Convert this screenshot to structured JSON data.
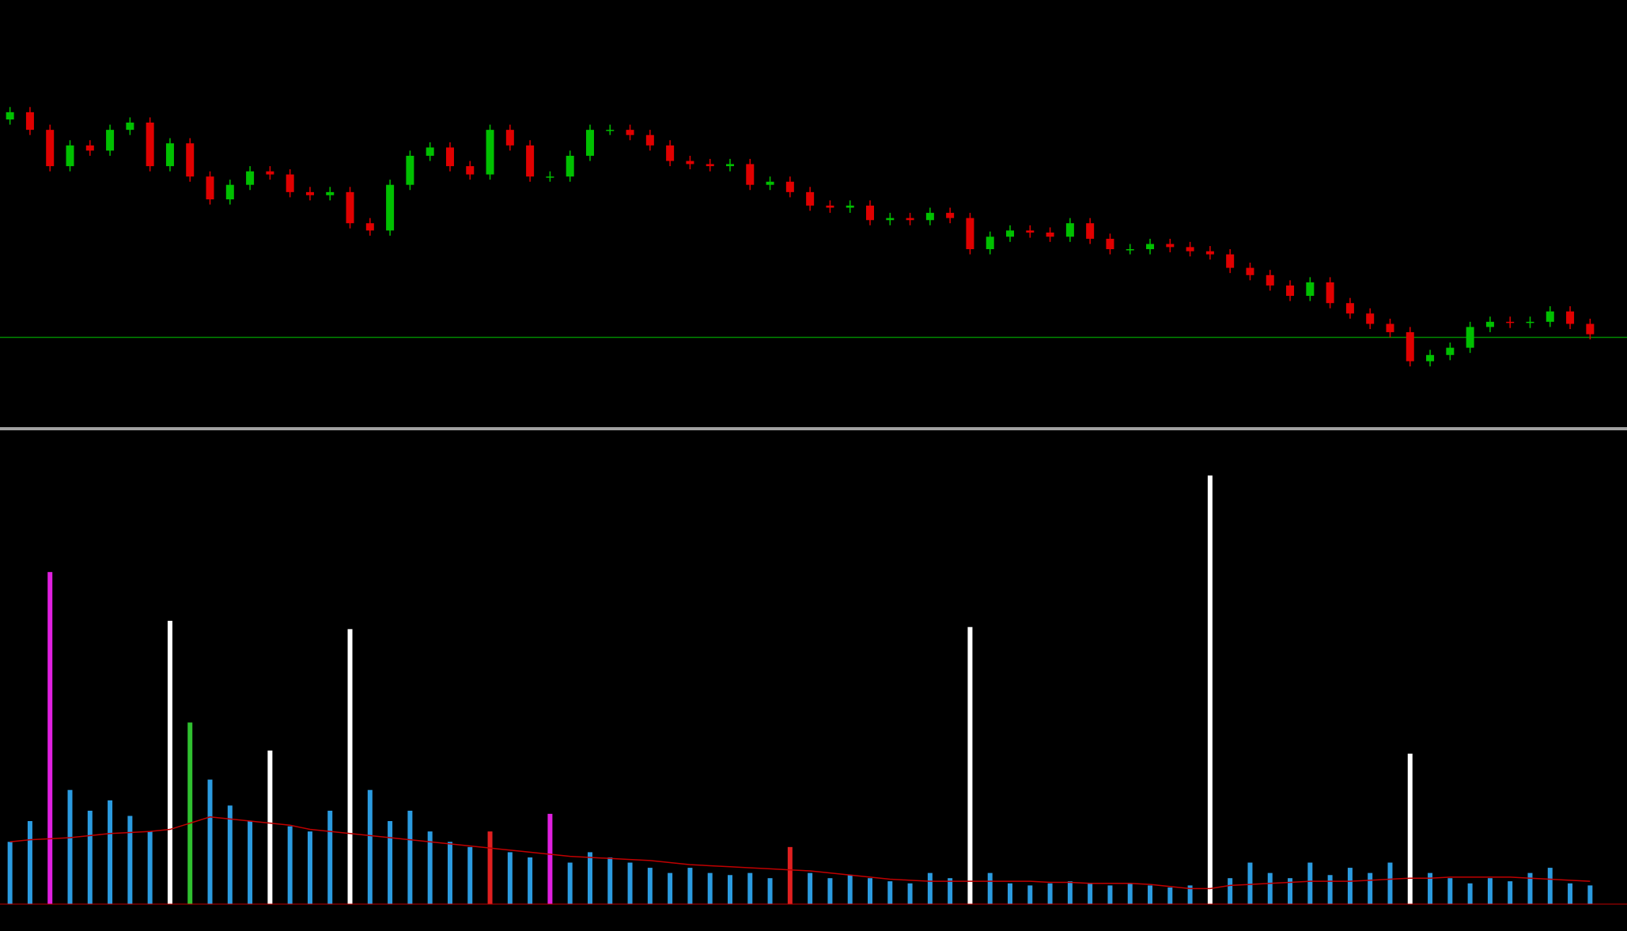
{
  "chart_data": [
    {
      "type": "candlestick",
      "up_color": "#00c000",
      "down_color": "#e00000",
      "ylim": [
        0,
        136
      ],
      "hline": {
        "value": 34,
        "color": "#008a00"
      },
      "open": [
        118,
        120.8,
        114,
        100,
        108,
        106,
        114,
        116.8,
        100,
        108.8,
        96,
        87.2,
        92.8,
        98,
        96.8,
        90,
        88.8,
        90,
        78,
        75.2,
        92.8,
        104,
        107.2,
        100,
        96.8,
        114,
        108,
        96,
        96,
        104,
        114,
        114,
        112,
        108,
        102,
        100.8,
        100,
        100.8,
        92.8,
        94,
        90,
        84.8,
        84,
        84.8,
        79.2,
        80,
        79.2,
        82,
        80,
        68,
        72.8,
        75.2,
        74.4,
        72.8,
        78,
        72,
        68,
        68,
        70,
        68.8,
        67.2,
        66,
        60.8,
        58,
        54,
        50,
        55.2,
        47.2,
        43.2,
        39.2,
        36,
        24.8,
        27.2,
        30,
        38,
        40,
        39.6,
        40,
        44,
        39.2
      ],
      "high": [
        122.8,
        122.8,
        116,
        110,
        110,
        116,
        118.8,
        118.8,
        110.8,
        110.8,
        98,
        94.8,
        100,
        100,
        98.8,
        92,
        92,
        92,
        80,
        94.8,
        106,
        109.2,
        109.2,
        102,
        116,
        116,
        110,
        98,
        106,
        116,
        116,
        116,
        114,
        110,
        104,
        102.8,
        102.8,
        102.8,
        96,
        96,
        92,
        86.8,
        86.8,
        86.8,
        82,
        82,
        84,
        84,
        82,
        74.8,
        77.2,
        77.2,
        76.4,
        80,
        80,
        74,
        70,
        72,
        72,
        70.8,
        69.2,
        68,
        62.8,
        60,
        56,
        57.2,
        57.2,
        49.2,
        45.2,
        41.2,
        38,
        29.2,
        32,
        40,
        42,
        42,
        42,
        46,
        46,
        41.2
      ],
      "low": [
        116,
        112,
        98,
        98,
        104,
        104,
        112,
        98,
        98,
        94,
        85.2,
        85.2,
        90.8,
        94.8,
        88,
        86.8,
        86.8,
        76,
        73.2,
        73.2,
        90.8,
        102,
        98,
        94.8,
        94.8,
        106,
        94,
        94,
        94,
        102,
        112,
        110,
        106,
        100,
        98.8,
        98,
        98,
        90.8,
        90.8,
        88,
        82.8,
        82,
        82,
        77.2,
        77.2,
        77.2,
        77.2,
        78,
        66,
        66,
        70.8,
        72.4,
        70.8,
        70.8,
        70,
        66,
        66,
        66,
        66.8,
        65.2,
        64,
        58.8,
        56,
        52,
        48,
        48,
        45.2,
        41.2,
        37.2,
        34,
        22.8,
        22.8,
        25.2,
        28,
        36,
        37.6,
        37.6,
        38,
        37.2,
        33.2
      ],
      "close": [
        120.8,
        114,
        100,
        108,
        106,
        114,
        116.8,
        100,
        108.8,
        96,
        87.2,
        92.8,
        98,
        96.8,
        90,
        88.8,
        90,
        78,
        75.2,
        92.8,
        104,
        107.2,
        100,
        96.8,
        114,
        108,
        96,
        96,
        104,
        114,
        114,
        112,
        108,
        102,
        100.8,
        100,
        100.8,
        92.8,
        94,
        90,
        84.8,
        84,
        84.8,
        79.2,
        80,
        79.2,
        82,
        80,
        68,
        72.8,
        75.2,
        74.4,
        72.8,
        78,
        72,
        68,
        68,
        70,
        68.8,
        67.2,
        66,
        60.8,
        58,
        54,
        50,
        55.2,
        47.2,
        43.2,
        39.2,
        36,
        24.8,
        27.2,
        30,
        38,
        40,
        39.6,
        40,
        44,
        39.2,
        35.2
      ]
    },
    {
      "type": "bar",
      "ylim": [
        0,
        420
      ],
      "values": [
        60,
        80,
        320,
        110,
        90,
        100,
        85,
        70,
        273,
        175,
        120,
        95,
        80,
        148,
        75,
        70,
        90,
        265,
        110,
        80,
        90,
        70,
        60,
        55,
        70,
        50,
        45,
        87,
        40,
        50,
        45,
        40,
        35,
        30,
        35,
        30,
        28,
        30,
        25,
        55,
        30,
        25,
        28,
        25,
        22,
        20,
        30,
        25,
        267,
        30,
        20,
        18,
        20,
        22,
        20,
        18,
        20,
        18,
        16,
        18,
        413,
        25,
        40,
        30,
        25,
        40,
        28,
        35,
        30,
        40,
        145,
        30,
        25,
        20,
        25,
        22,
        30,
        35,
        20,
        18
      ],
      "colors": [
        "#2b9be0",
        "#2b9be0",
        "#e020e0",
        "#2b9be0",
        "#2b9be0",
        "#2b9be0",
        "#2b9be0",
        "#2b9be0",
        "#ffffff",
        "#30c030",
        "#2b9be0",
        "#2b9be0",
        "#2b9be0",
        "#ffffff",
        "#2b9be0",
        "#2b9be0",
        "#2b9be0",
        "#ffffff",
        "#2b9be0",
        "#2b9be0",
        "#2b9be0",
        "#2b9be0",
        "#2b9be0",
        "#2b9be0",
        "#e02020",
        "#2b9be0",
        "#2b9be0",
        "#e020e0",
        "#2b9be0",
        "#2b9be0",
        "#2b9be0",
        "#2b9be0",
        "#2b9be0",
        "#2b9be0",
        "#2b9be0",
        "#2b9be0",
        "#2b9be0",
        "#2b9be0",
        "#2b9be0",
        "#e02020",
        "#2b9be0",
        "#2b9be0",
        "#2b9be0",
        "#2b9be0",
        "#2b9be0",
        "#2b9be0",
        "#2b9be0",
        "#2b9be0",
        "#ffffff",
        "#2b9be0",
        "#2b9be0",
        "#2b9be0",
        "#2b9be0",
        "#2b9be0",
        "#2b9be0",
        "#2b9be0",
        "#2b9be0",
        "#2b9be0",
        "#2b9be0",
        "#2b9be0",
        "#ffffff",
        "#2b9be0",
        "#2b9be0",
        "#2b9be0",
        "#2b9be0",
        "#2b9be0",
        "#2b9be0",
        "#2b9be0",
        "#2b9be0",
        "#2b9be0",
        "#ffffff",
        "#2b9be0",
        "#2b9be0",
        "#2b9be0",
        "#2b9be0",
        "#2b9be0",
        "#2b9be0",
        "#2b9be0",
        "#2b9be0",
        "#2b9be0"
      ],
      "line": {
        "color": "#c00000",
        "values": [
          60,
          62,
          63,
          64,
          66,
          68,
          69,
          70,
          72,
          78,
          84,
          82,
          80,
          78,
          76,
          72,
          70,
          68,
          66,
          64,
          62,
          60,
          58,
          56,
          54,
          52,
          50,
          48,
          46,
          45,
          44,
          43,
          42,
          40,
          38,
          37,
          36,
          35,
          34,
          33,
          32,
          30,
          28,
          26,
          24,
          23,
          22,
          22,
          22,
          22,
          22,
          22,
          21,
          21,
          20,
          20,
          20,
          19,
          17,
          15,
          15,
          18,
          19,
          20,
          21,
          22,
          22,
          22,
          23,
          24,
          25,
          25,
          26,
          26,
          26,
          26,
          25,
          24,
          23,
          22
        ]
      }
    }
  ]
}
